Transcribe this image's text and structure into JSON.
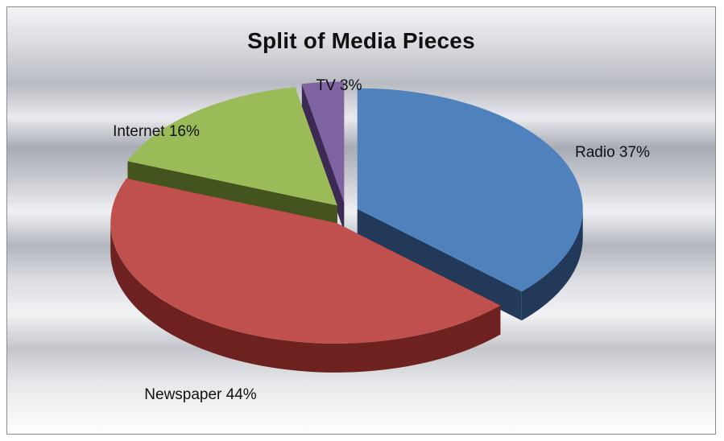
{
  "chart_data": {
    "type": "pie",
    "title": "Split of Media Pieces",
    "exploded": true,
    "style": "3d",
    "slices": [
      {
        "label": "Radio",
        "value": 37,
        "display": "Radio 37%",
        "color": "#4f81bd",
        "side_color": "#23395a"
      },
      {
        "label": "Newspaper",
        "value": 44,
        "display": "Newspaper 44%",
        "color": "#c0504d",
        "side_color": "#6e2220"
      },
      {
        "label": "Internet",
        "value": 16,
        "display": "Internet 16%",
        "color": "#9bbb59",
        "side_color": "#44541e"
      },
      {
        "label": "TV",
        "value": 3,
        "display": "TV 3%",
        "color": "#8064a2",
        "side_color": "#3c2a55"
      }
    ]
  }
}
